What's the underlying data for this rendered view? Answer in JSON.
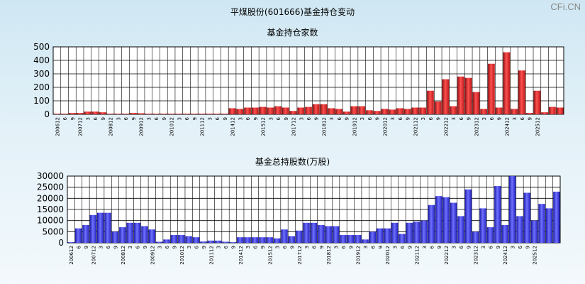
{
  "page": {
    "title": "平煤股份(601666)基金持仓变动",
    "brand": "CFi.CN"
  },
  "chart_data": [
    {
      "type": "bar",
      "title": "基金持仓家数",
      "ylim": [
        0,
        500
      ],
      "yticks": [
        0,
        100,
        200,
        300,
        400,
        500
      ],
      "grid": true,
      "x_tick_labels": [
        "200612",
        "6",
        "9",
        "200712",
        "3",
        "6",
        "9",
        "200812",
        "3",
        "6",
        "9",
        "200912",
        "3",
        "6",
        "9",
        "201012",
        "3",
        "6",
        "9",
        "201112",
        "3",
        "6",
        "9",
        "201412",
        "3",
        "6",
        "9",
        "201512",
        "3",
        "6",
        "9",
        "201712",
        "3",
        "6",
        "9",
        "201812",
        "3",
        "6",
        "9",
        "201912",
        "3",
        "6",
        "9",
        "202012",
        "3",
        "6",
        "9",
        "202112",
        "3",
        "6",
        "9",
        "202212",
        "3",
        "6",
        "9",
        "202312",
        "3",
        "6",
        "9",
        "202412",
        "3",
        "6",
        "9",
        "202512"
      ],
      "values": [
        5,
        5,
        10,
        10,
        20,
        20,
        15,
        5,
        5,
        5,
        10,
        8,
        5,
        5,
        5,
        5,
        5,
        5,
        5,
        5,
        5,
        5,
        5,
        45,
        40,
        50,
        50,
        55,
        50,
        60,
        50,
        25,
        50,
        55,
        75,
        75,
        45,
        40,
        20,
        60,
        60,
        30,
        25,
        40,
        35,
        45,
        40,
        50,
        50,
        175,
        95,
        260,
        60,
        280,
        270,
        165,
        40,
        375,
        50,
        460,
        40,
        325,
        10,
        175,
        15,
        55,
        50
      ]
    },
    {
      "type": "bar",
      "title": "基金总持股数(万股)",
      "ylim": [
        0,
        30000
      ],
      "yticks": [
        0,
        5000,
        10000,
        15000,
        20000,
        25000,
        30000
      ],
      "grid": true,
      "x_tick_labels": [
        "200612",
        "6",
        "9",
        "200712",
        "3",
        "6",
        "9",
        "200812",
        "3",
        "6",
        "9",
        "200912",
        "3",
        "6",
        "9",
        "201012",
        "3",
        "6",
        "9",
        "201112",
        "3",
        "6",
        "9",
        "201412",
        "3",
        "6",
        "9",
        "201512",
        "3",
        "6",
        "9",
        "201712",
        "3",
        "6",
        "9",
        "201812",
        "3",
        "6",
        "9",
        "201912",
        "3",
        "6",
        "9",
        "202012",
        "3",
        "6",
        "9",
        "202112",
        "3",
        "6",
        "9",
        "202212",
        "3",
        "6",
        "9",
        "202312",
        "3",
        "6",
        "9",
        "202412",
        "3",
        "6",
        "9",
        "202512"
      ],
      "values": [
        300,
        6500,
        8000,
        12500,
        13500,
        13500,
        5000,
        7000,
        9000,
        9000,
        7500,
        6000,
        500,
        1500,
        3500,
        3500,
        3000,
        2500,
        600,
        1000,
        1000,
        500,
        300,
        2500,
        2500,
        2500,
        2500,
        2500,
        2000,
        6000,
        3000,
        5500,
        9000,
        9000,
        8000,
        7500,
        7500,
        3500,
        3500,
        3500,
        1500,
        5000,
        6500,
        6500,
        9000,
        4000,
        9000,
        9500,
        10000,
        17000,
        21000,
        20500,
        18000,
        12000,
        24000,
        5000,
        15500,
        7000,
        25500,
        8000,
        30000,
        12000,
        22500,
        10000,
        17500,
        15500,
        23000
      ]
    }
  ]
}
